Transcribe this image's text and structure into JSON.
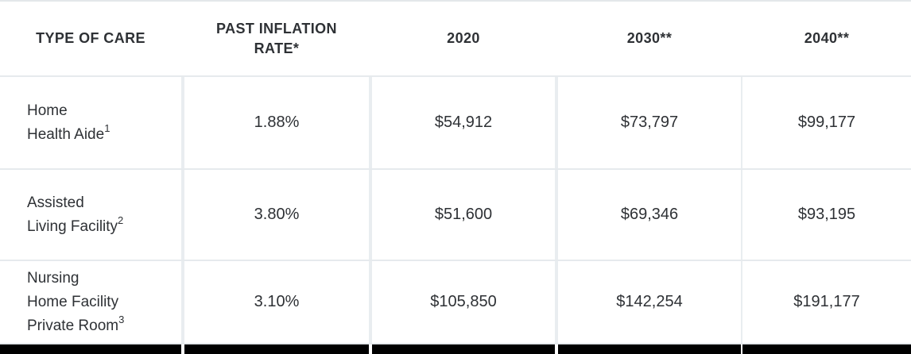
{
  "header": {
    "columns": [
      "TYPE OF CARE",
      "PAST INFLATION RATE*",
      "2020",
      "2030**",
      "2040**"
    ]
  },
  "rows": [
    {
      "name_lines": [
        "Home",
        "Health Aide"
      ],
      "superscript": "1",
      "values": [
        "1.88%",
        "$54,912",
        "$73,797",
        "$99,177"
      ]
    },
    {
      "name_lines": [
        "Assisted",
        "Living Facility"
      ],
      "superscript": "2",
      "values": [
        "3.80%",
        "$51,600",
        "$69,346",
        "$93,195"
      ]
    },
    {
      "name_lines": [
        "Nursing",
        "Home Facility",
        "Private Room"
      ],
      "superscript": "3",
      "values": [
        "3.10%",
        "$105,850",
        "$142,254",
        "$191,177"
      ]
    }
  ],
  "colors": {
    "header_bg": "#009DDB",
    "header_text": "#FFFFFF",
    "body_text": "#2E3135",
    "separator": "#E9EDF0",
    "row_line": "#E6EAED",
    "bottom_bar": "#000000"
  },
  "chart_data": {
    "type": "table",
    "title": "Cost of care by type with past inflation rate and projections",
    "columns": [
      "TYPE OF CARE",
      "PAST INFLATION RATE*",
      "2020",
      "2030**",
      "2040**"
    ],
    "rows": [
      [
        "Home Health Aide¹",
        "1.88%",
        "$54,912",
        "$73,797",
        "$99,177"
      ],
      [
        "Assisted Living Facility²",
        "3.80%",
        "$51,600",
        "$69,346",
        "$93,195"
      ],
      [
        "Nursing Home Facility Private Room³",
        "3.10%",
        "$105,850",
        "$142,254",
        "$191,177"
      ]
    ]
  }
}
